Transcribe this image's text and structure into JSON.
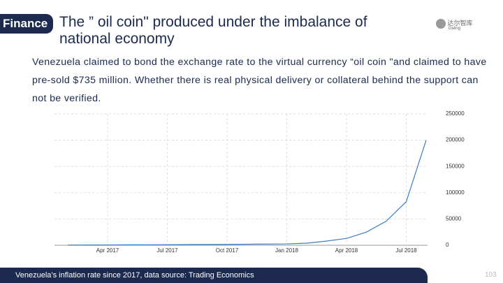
{
  "header": {
    "tag": "Finance",
    "title": "The ” oil coin\" produced under the imbalance of national economy"
  },
  "logo": {
    "name": "达尔智库",
    "subtitle": "Daling"
  },
  "body": {
    "text": "Venezuela claimed to bond the exchange rate to the virtual currency “oil coin \"and claimed to have pre-sold $735 million. Whether there is real physical delivery or collateral behind the support can not be verified."
  },
  "chart_data": {
    "type": "line",
    "categories": [
      null,
      null,
      "Apr 2017",
      null,
      null,
      "Jul 2017",
      null,
      null,
      "Oct 2017",
      null,
      null,
      "Jan 2018",
      null,
      null,
      "Apr 2018",
      null,
      null,
      "Jul 2018",
      null
    ],
    "series": [
      {
        "name": "Inflation rate",
        "color": "#3b7dc4",
        "values": [
          400,
          500,
          600,
          800,
          900,
          1100,
          1300,
          1500,
          1700,
          2000,
          2300,
          2600,
          4000,
          8000,
          13000,
          25000,
          46000,
          83000,
          200000
        ]
      }
    ],
    "ylim": [
      0,
      250000
    ],
    "yticks": [
      0,
      50000,
      100000,
      150000,
      200000,
      250000
    ],
    "grid": true
  },
  "footer": {
    "caption": "Venezuela’s inflation rate since 2017, data source: Trading Economics",
    "page": "103"
  }
}
